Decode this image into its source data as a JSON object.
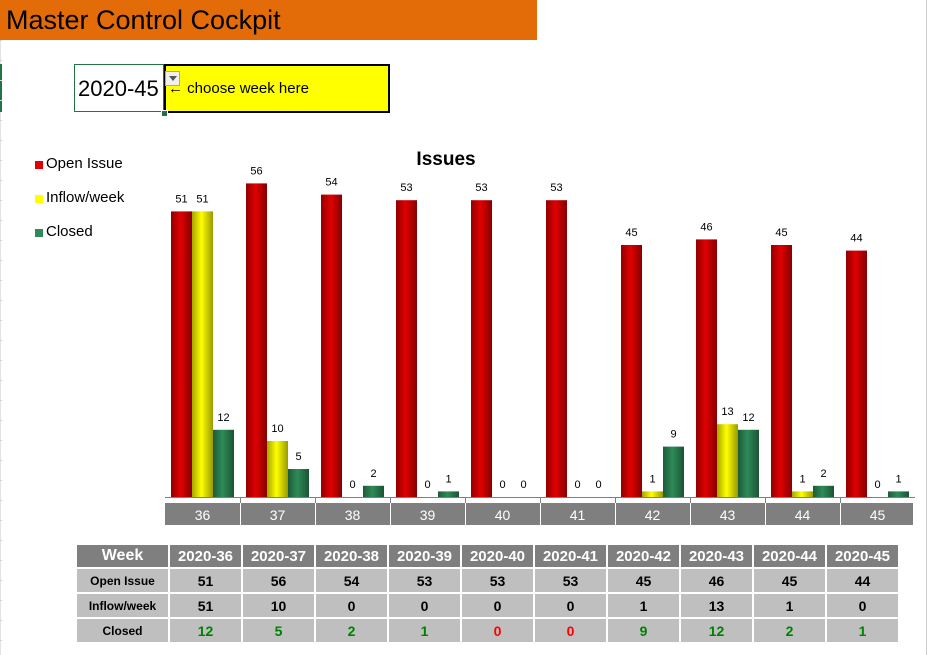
{
  "header": {
    "title": "Master Control Cockpit"
  },
  "selector": {
    "week_value": "2020-45",
    "hint": "← choose week here"
  },
  "legend": [
    {
      "label": "Open Issue",
      "color": "#e00000"
    },
    {
      "label": "Inflow/week",
      "color": "#ffff00"
    },
    {
      "label": "Closed",
      "color": "#2e8b57"
    }
  ],
  "chart_data": {
    "type": "bar",
    "title": "Issues",
    "categories": [
      "36",
      "37",
      "38",
      "39",
      "40",
      "41",
      "42",
      "43",
      "44",
      "45"
    ],
    "series": [
      {
        "name": "Open Issue",
        "color": "#e00000",
        "values": [
          51,
          56,
          54,
          53,
          53,
          53,
          45,
          46,
          45,
          44
        ]
      },
      {
        "name": "Inflow/week",
        "color": "#ffff00",
        "values": [
          51,
          10,
          0,
          0,
          0,
          0,
          1,
          13,
          1,
          0
        ]
      },
      {
        "name": "Closed",
        "color": "#2e8b57",
        "values": [
          12,
          5,
          2,
          1,
          0,
          0,
          9,
          12,
          2,
          1
        ]
      }
    ],
    "ylim": [
      0,
      60
    ],
    "grid": false,
    "legend_position": "left"
  },
  "table": {
    "header_label": "Week",
    "weeks": [
      "2020-36",
      "2020-37",
      "2020-38",
      "2020-39",
      "2020-40",
      "2020-41",
      "2020-42",
      "2020-43",
      "2020-44",
      "2020-45"
    ],
    "rows": [
      {
        "label": "Open Issue",
        "values": [
          "51",
          "56",
          "54",
          "53",
          "53",
          "53",
          "45",
          "46",
          "45",
          "44"
        ]
      },
      {
        "label": "Inflow/week",
        "values": [
          "51",
          "10",
          "0",
          "0",
          "0",
          "0",
          "1",
          "13",
          "1",
          "0"
        ]
      },
      {
        "label": "Closed",
        "values": [
          "12",
          "5",
          "2",
          "1",
          "0",
          "0",
          "9",
          "12",
          "2",
          "1"
        ]
      }
    ],
    "colors": {
      "closed_positive": "#008000",
      "closed_zero": "#ff0000"
    }
  }
}
